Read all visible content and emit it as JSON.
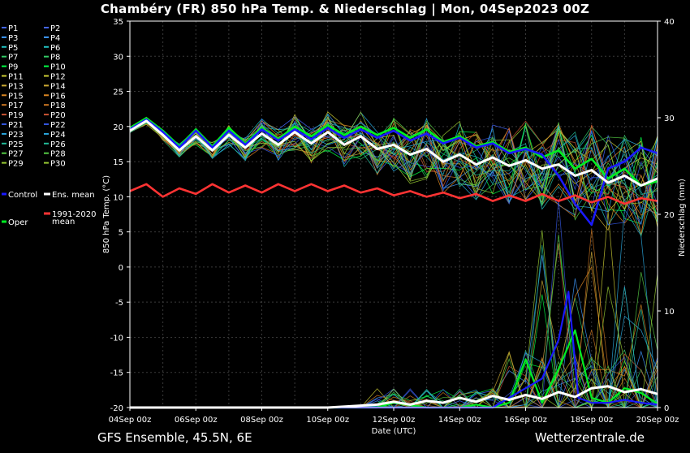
{
  "title": "Chambéry  (FR)  850 hPa Temp. & Niederschlag | Mon, 04Sep2023 00Z",
  "footer_left": "GFS Ensemble, 45.5N, 6E",
  "footer_right": "Wetterzentrale.de",
  "chart_data": {
    "type": "line",
    "xlabel": "Date (UTC)",
    "ylabel_left": "850 hPa Temp. (°C)",
    "ylabel_right": "Niederschlag (mm)",
    "ylim_left": [
      -20,
      35
    ],
    "ylim_right": [
      0,
      40
    ],
    "x_range_days": [
      0,
      16
    ],
    "x_ticks": [
      "04Sep 00z",
      "06Sep 00z",
      "08Sep 00z",
      "10Sep 00z",
      "12Sep 00z",
      "14Sep 00z",
      "16Sep 00z",
      "18Sep 00z",
      "20Sep 00z"
    ],
    "y_ticks_left": [
      35,
      30,
      25,
      20,
      15,
      10,
      5,
      0,
      -5,
      -10,
      -15,
      -20
    ],
    "y_ticks_right": [
      40,
      30,
      20,
      10,
      0
    ],
    "grid": true,
    "legend_placement": "left",
    "legend": [
      {
        "label": "P1",
        "color": "#4466ff"
      },
      {
        "label": "P2",
        "color": "#4466ff"
      },
      {
        "label": "P3",
        "color": "#3f9bff"
      },
      {
        "label": "P4",
        "color": "#3f9bff"
      },
      {
        "label": "P5",
        "color": "#20c0c0"
      },
      {
        "label": "P6",
        "color": "#20c0c0"
      },
      {
        "label": "P7",
        "color": "#33cc66"
      },
      {
        "label": "P8",
        "color": "#33cc66"
      },
      {
        "label": "P9",
        "color": "#00ff44"
      },
      {
        "label": "P10",
        "color": "#00ff44"
      },
      {
        "label": "P11",
        "color": "#cccc33"
      },
      {
        "label": "P12",
        "color": "#cccc33"
      },
      {
        "label": "P13",
        "color": "#ccaa33"
      },
      {
        "label": "P14",
        "color": "#ccaa33"
      },
      {
        "label": "P15",
        "color": "#dd8822"
      },
      {
        "label": "P16",
        "color": "#dd8822"
      },
      {
        "label": "P17",
        "color": "#cc7722"
      },
      {
        "label": "P18",
        "color": "#cc7722"
      },
      {
        "label": "P19",
        "color": "#cc5533"
      },
      {
        "label": "P20",
        "color": "#cc5533"
      },
      {
        "label": "P21",
        "color": "#3355dd"
      },
      {
        "label": "P22",
        "color": "#3355dd"
      },
      {
        "label": "P23",
        "color": "#2aa9e0"
      },
      {
        "label": "P24",
        "color": "#2aa9e0"
      },
      {
        "label": "P25",
        "color": "#22bb99"
      },
      {
        "label": "P26",
        "color": "#22bb99"
      },
      {
        "label": "P27",
        "color": "#55cc44"
      },
      {
        "label": "P28",
        "color": "#55cc44"
      },
      {
        "label": "P29",
        "color": "#99cc33"
      },
      {
        "label": "P30",
        "color": "#99cc33"
      },
      {
        "label": "Control",
        "color": "#1a1aff"
      },
      {
        "label": "Ens. mean",
        "color": "#ffffff"
      },
      {
        "label": "1991-2020 mean",
        "color": "#ff3333"
      },
      {
        "label": "Oper",
        "color": "#00ee22"
      }
    ],
    "series": [
      {
        "name": "Oper",
        "color": "#00ee22",
        "role": "temp",
        "x": [
          0,
          0.5,
          1,
          1.5,
          2,
          2.5,
          3,
          3.5,
          4,
          4.5,
          5,
          5.5,
          6,
          6.5,
          7,
          7.5,
          8,
          8.5,
          9,
          9.5,
          10,
          10.5,
          11,
          11.5,
          12,
          12.5,
          13,
          13.5,
          14,
          14.5,
          15,
          15.5,
          16
        ],
        "values": [
          19.8,
          21.2,
          19.4,
          17.2,
          19.6,
          17.2,
          19.8,
          17.6,
          19.8,
          18.2,
          20.0,
          18.6,
          20.2,
          18.8,
          20.0,
          18.8,
          19.8,
          18.4,
          19.6,
          17.8,
          18.6,
          17.2,
          17.8,
          16.4,
          17.0,
          15.6,
          16.6,
          14.0,
          15.4,
          12.6,
          14.0,
          11.6,
          12.2
        ]
      },
      {
        "name": "Control",
        "color": "#1a1aff",
        "role": "temp",
        "x": [
          0,
          0.5,
          1,
          1.5,
          2,
          2.5,
          3,
          3.5,
          4,
          4.5,
          5,
          5.5,
          6,
          6.5,
          7,
          7.5,
          8,
          8.5,
          9,
          9.5,
          10,
          10.5,
          11,
          11.5,
          12,
          12.5,
          13,
          13.5,
          14,
          14.5,
          15,
          15.5,
          16
        ],
        "values": [
          19.6,
          21.0,
          19.2,
          17.0,
          19.4,
          17.0,
          19.4,
          17.4,
          19.6,
          18.0,
          19.6,
          18.2,
          19.8,
          18.4,
          19.6,
          18.4,
          19.4,
          18.0,
          19.0,
          17.6,
          18.4,
          17.0,
          17.6,
          16.2,
          16.8,
          16.0,
          13.0,
          9.0,
          6.0,
          14.0,
          15.0,
          17.0,
          16.2
        ]
      },
      {
        "name": "Ens. mean",
        "color": "#ffffff",
        "role": "temp",
        "x": [
          0,
          0.5,
          1,
          1.5,
          2,
          2.5,
          3,
          3.5,
          4,
          4.5,
          5,
          5.5,
          6,
          6.5,
          7,
          7.5,
          8,
          8.5,
          9,
          9.5,
          10,
          10.5,
          11,
          11.5,
          12,
          12.5,
          13,
          13.5,
          14,
          14.5,
          15,
          15.5,
          16
        ],
        "values": [
          19.4,
          20.8,
          18.8,
          16.6,
          18.6,
          16.6,
          18.8,
          17.0,
          19.0,
          17.4,
          19.2,
          17.6,
          19.2,
          17.4,
          18.6,
          16.8,
          17.4,
          16.0,
          16.8,
          15.0,
          16.0,
          14.6,
          15.6,
          14.4,
          15.2,
          14.0,
          14.6,
          13.0,
          13.8,
          12.0,
          13.0,
          11.6,
          12.6
        ]
      },
      {
        "name": "1991-2020 mean",
        "color": "#ff3333",
        "role": "temp",
        "x": [
          0,
          0.5,
          1,
          1.5,
          2,
          2.5,
          3,
          3.5,
          4,
          4.5,
          5,
          5.5,
          6,
          6.5,
          7,
          7.5,
          8,
          8.5,
          9,
          9.5,
          10,
          10.5,
          11,
          11.5,
          12,
          12.5,
          13,
          13.5,
          14,
          14.5,
          15,
          15.5,
          16
        ],
        "values": [
          10.8,
          11.8,
          10.0,
          11.2,
          10.4,
          11.8,
          10.6,
          11.6,
          10.6,
          11.8,
          10.8,
          11.8,
          10.8,
          11.6,
          10.6,
          11.2,
          10.2,
          10.8,
          10.0,
          10.6,
          9.8,
          10.4,
          9.4,
          10.2,
          9.4,
          10.4,
          9.4,
          10.2,
          9.2,
          10.0,
          9.0,
          9.8,
          9.4
        ]
      },
      {
        "name": "Oper precip",
        "color": "#00ee22",
        "role": "precip",
        "x": [
          0,
          2,
          4,
          6,
          7.5,
          8,
          9,
          10,
          10.5,
          11,
          11.5,
          12,
          12.5,
          13,
          13.5,
          14,
          14.5,
          15,
          15.5,
          16
        ],
        "values": [
          0,
          0,
          0,
          0,
          0,
          0.5,
          0,
          0,
          0.3,
          0,
          0.5,
          5,
          0.5,
          4,
          8,
          1,
          0.5,
          2,
          1.5,
          0.4
        ]
      },
      {
        "name": "Control precip",
        "color": "#1a1aff",
        "role": "precip",
        "x": [
          0,
          2,
          4,
          6,
          8,
          10,
          11,
          11.5,
          12,
          12.5,
          13,
          13.3,
          13.6,
          14,
          14.5,
          15,
          15.5,
          16
        ],
        "values": [
          0,
          0,
          0,
          0,
          0,
          0,
          0,
          1,
          2,
          3,
          7,
          12,
          1,
          0.5,
          0.5,
          0.8,
          0.5,
          0.3
        ]
      },
      {
        "name": "Ens. mean precip",
        "color": "#ffffff",
        "role": "precip",
        "x": [
          0,
          2,
          4,
          6,
          7,
          7.5,
          8,
          8.5,
          9,
          9.5,
          10,
          10.5,
          11,
          11.5,
          12,
          12.5,
          13,
          13.5,
          14,
          14.5,
          15,
          15.5,
          16
        ],
        "values": [
          0,
          0,
          0,
          0,
          0.2,
          0.3,
          0.6,
          0.3,
          0.7,
          0.5,
          1.0,
          0.6,
          1.2,
          0.8,
          1.3,
          0.9,
          1.6,
          1.1,
          2.0,
          2.2,
          1.6,
          1.9,
          1.4
        ]
      }
    ]
  }
}
